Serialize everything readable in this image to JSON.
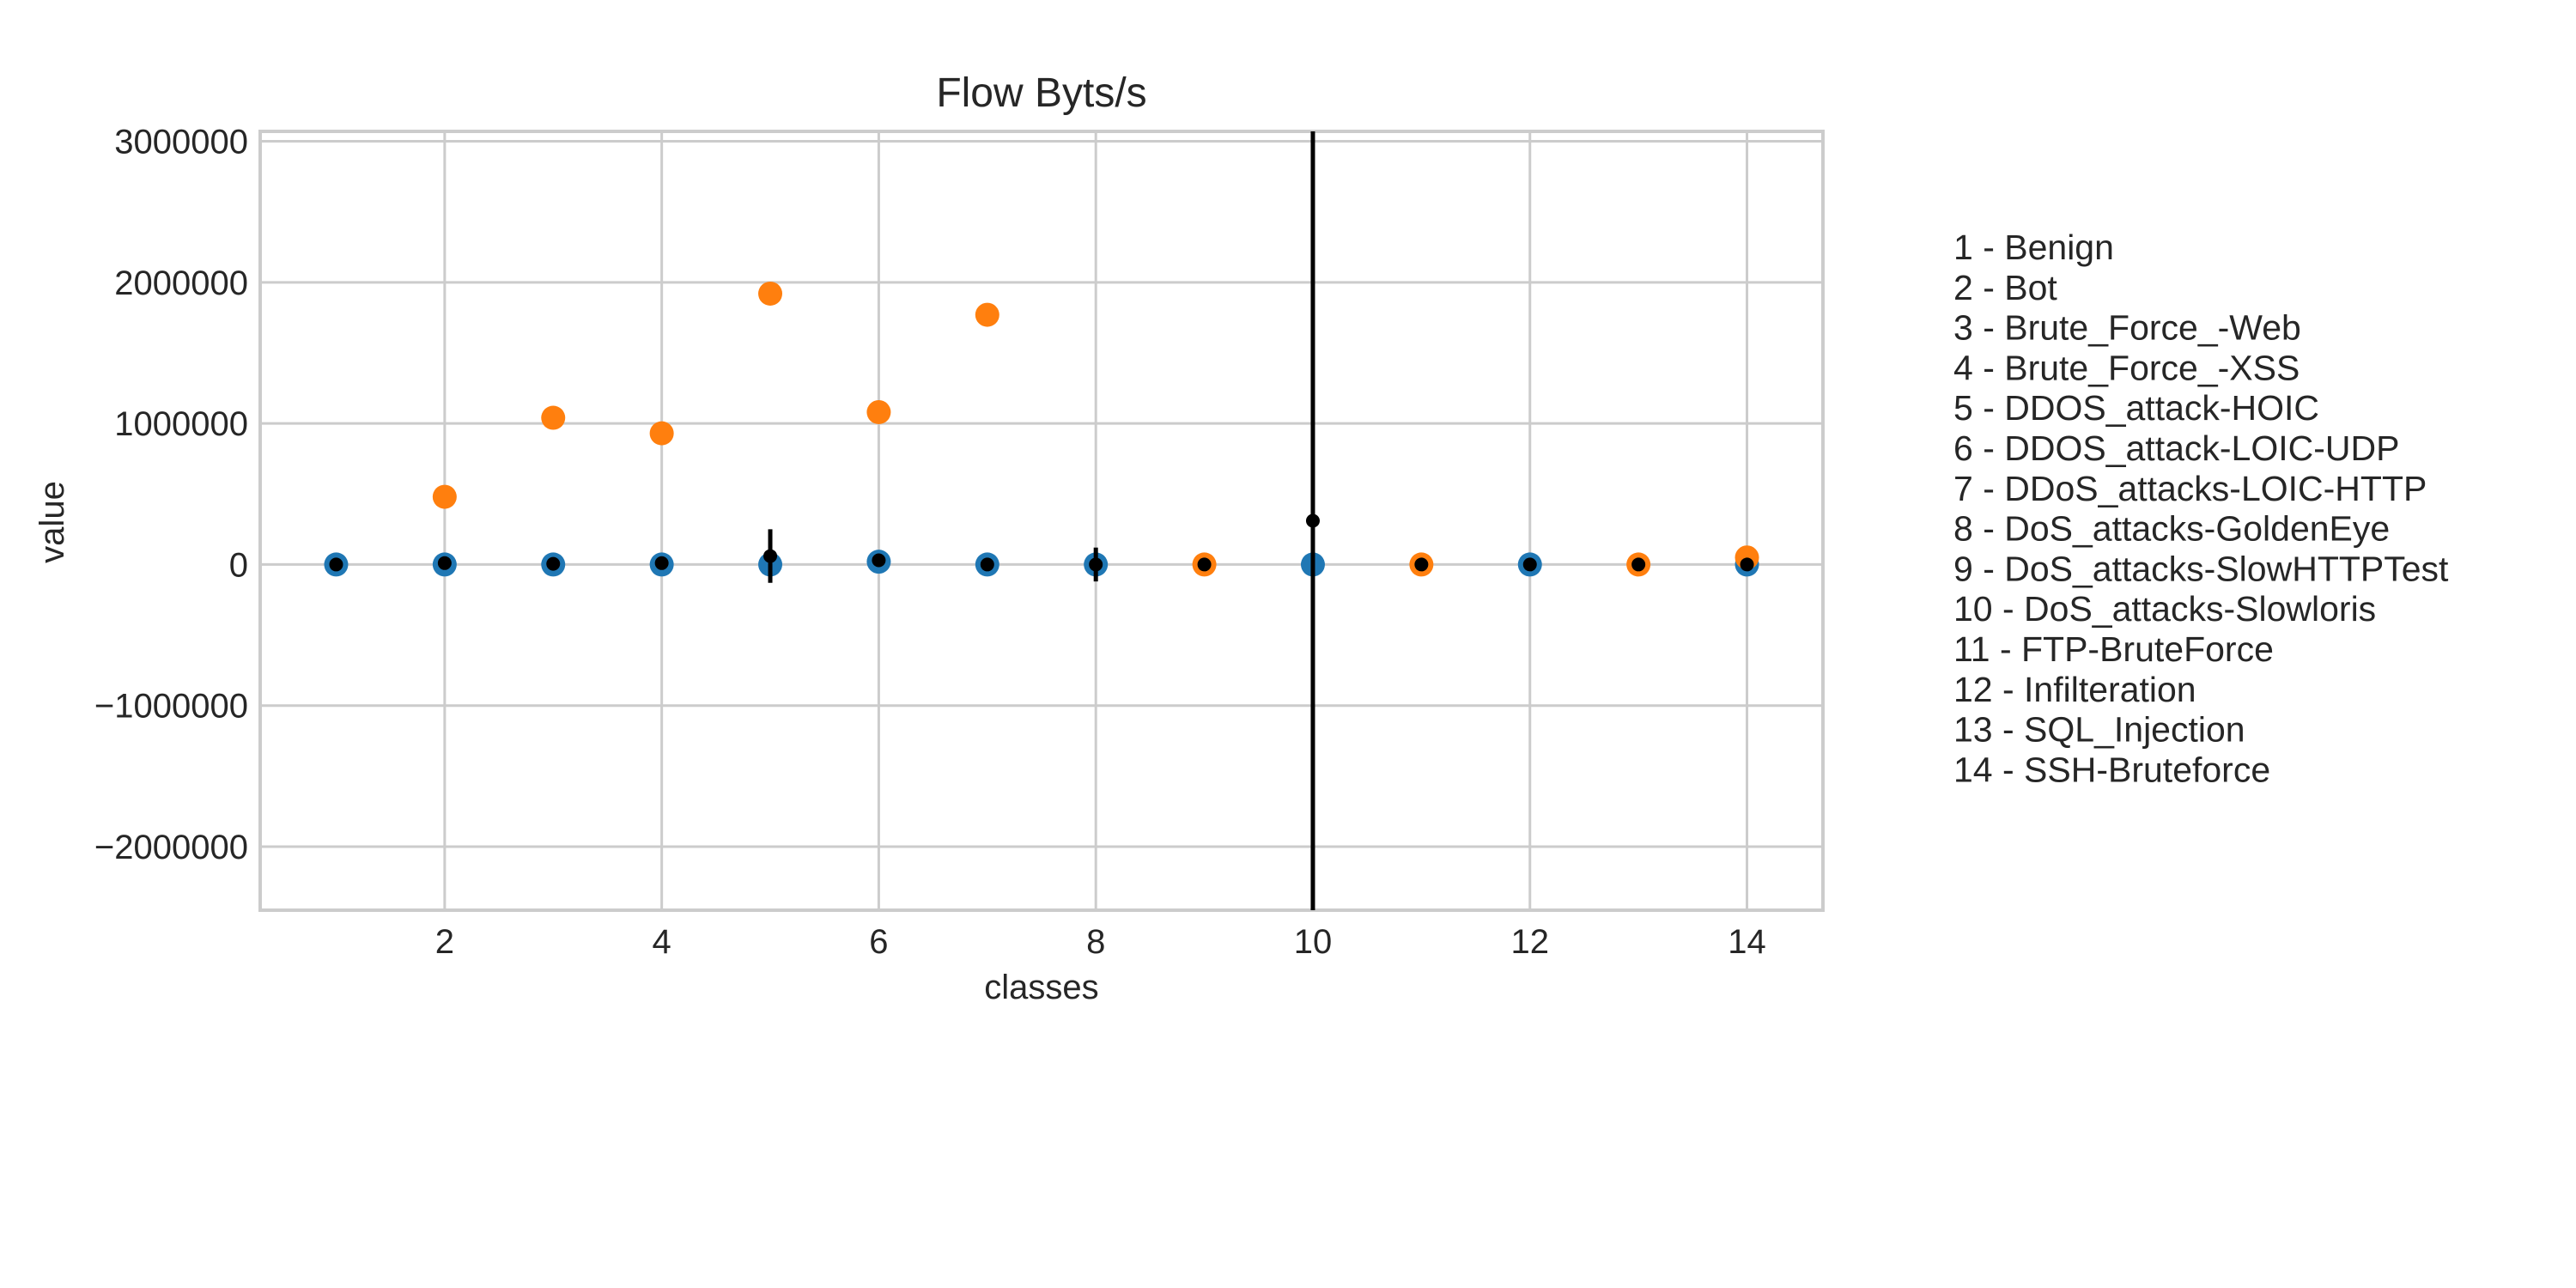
{
  "chart_data": {
    "type": "scatter",
    "title": "Flow Byts/s",
    "xlabel": "classes",
    "ylabel": "value",
    "xlim": [
      0.3,
      14.7
    ],
    "ylim": [
      -2450000,
      3070000
    ],
    "xticks": [
      2,
      4,
      6,
      8,
      10,
      12,
      14
    ],
    "xtick_labels": [
      "2",
      "4",
      "6",
      "8",
      "10",
      "12",
      "14"
    ],
    "yticks": [
      -2000000,
      -1000000,
      0,
      1000000,
      2000000,
      3000000
    ],
    "ytick_labels": [
      "−2000000",
      "−1000000",
      "0",
      "1000000",
      "2000000",
      "3000000"
    ],
    "grid": true,
    "x": [
      1,
      2,
      3,
      4,
      5,
      6,
      7,
      8,
      9,
      10,
      11,
      12,
      13,
      14
    ],
    "series": [
      {
        "color": "#1f77b4",
        "values": [
          0,
          0,
          0,
          0,
          0,
          20000,
          0,
          0,
          null,
          0,
          null,
          0,
          null,
          0
        ]
      },
      {
        "color": "#ff7f0e",
        "values": [
          null,
          480000,
          1040000,
          930000,
          1920000,
          1080000,
          1770000,
          null,
          0,
          null,
          0,
          null,
          0,
          50000
        ]
      },
      {
        "color": "#000000",
        "values": [
          0,
          10000,
          5000,
          10000,
          60000,
          30000,
          0,
          0,
          0,
          310000,
          0,
          0,
          0,
          0
        ],
        "error": [
          0,
          0,
          0,
          0,
          190000,
          0,
          0,
          120000,
          0,
          3500000,
          0,
          0,
          0,
          0
        ]
      }
    ]
  },
  "legend": {
    "position": "right",
    "items": [
      "1 - Benign",
      "2 - Bot",
      "3 - Brute_Force_-Web",
      "4 - Brute_Force_-XSS",
      "5 - DDOS_attack-HOIC",
      "6 - DDOS_attack-LOIC-UDP",
      "7 - DDoS_attacks-LOIC-HTTP",
      "8 - DoS_attacks-GoldenEye",
      "9 - DoS_attacks-SlowHTTPTest",
      "10 - DoS_attacks-Slowloris",
      "11 - FTP-BruteForce",
      "12 - Infilteration",
      "13 - SQL_Injection",
      "14 - SSH-Bruteforce"
    ]
  }
}
